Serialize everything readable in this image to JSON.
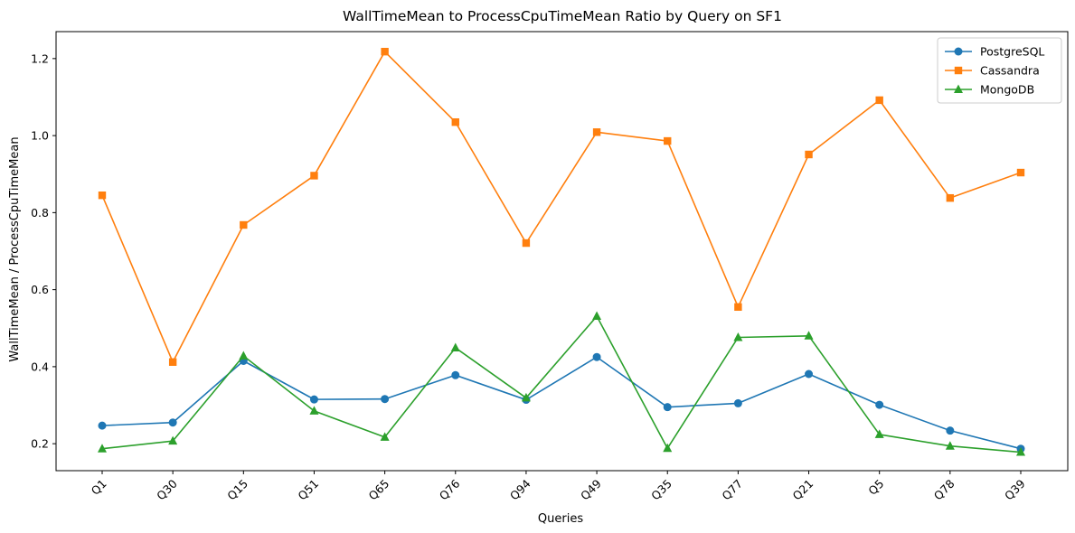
{
  "chart_data": {
    "type": "line",
    "title": "WallTimeMean to ProcessCpuTimeMean Ratio by Query on SF1",
    "xlabel": "Queries",
    "ylabel": "WallTimeMean / ProcessCpuTimeMean",
    "categories": [
      "Q1",
      "Q30",
      "Q15",
      "Q51",
      "Q65",
      "Q76",
      "Q94",
      "Q49",
      "Q35",
      "Q77",
      "Q21",
      "Q5",
      "Q78",
      "Q39"
    ],
    "ylim": [
      0.13,
      1.27
    ],
    "yticks": [
      0.2,
      0.4,
      0.6,
      0.8,
      1.0,
      1.2
    ],
    "ytick_labels": [
      "0.2",
      "0.4",
      "0.6",
      "0.8",
      "1.0",
      "1.2"
    ],
    "grid": false,
    "legend_position": "top-right",
    "series": [
      {
        "name": "PostgreSQL",
        "color": "#1f77b4",
        "marker": "circle",
        "values": [
          0.247,
          0.255,
          0.415,
          0.315,
          0.316,
          0.378,
          0.314,
          0.425,
          0.295,
          0.305,
          0.381,
          0.301,
          0.234,
          0.187
        ]
      },
      {
        "name": "Cassandra",
        "color": "#ff7f0e",
        "marker": "square",
        "values": [
          0.845,
          0.412,
          0.768,
          0.896,
          1.218,
          1.035,
          0.721,
          1.009,
          0.986,
          0.555,
          0.951,
          1.092,
          0.838,
          0.904
        ]
      },
      {
        "name": "MongoDB",
        "color": "#2ca02c",
        "marker": "triangle",
        "values": [
          0.187,
          0.207,
          0.428,
          0.285,
          0.217,
          0.449,
          0.319,
          0.531,
          0.188,
          0.476,
          0.48,
          0.224,
          0.194,
          0.178
        ]
      }
    ]
  }
}
